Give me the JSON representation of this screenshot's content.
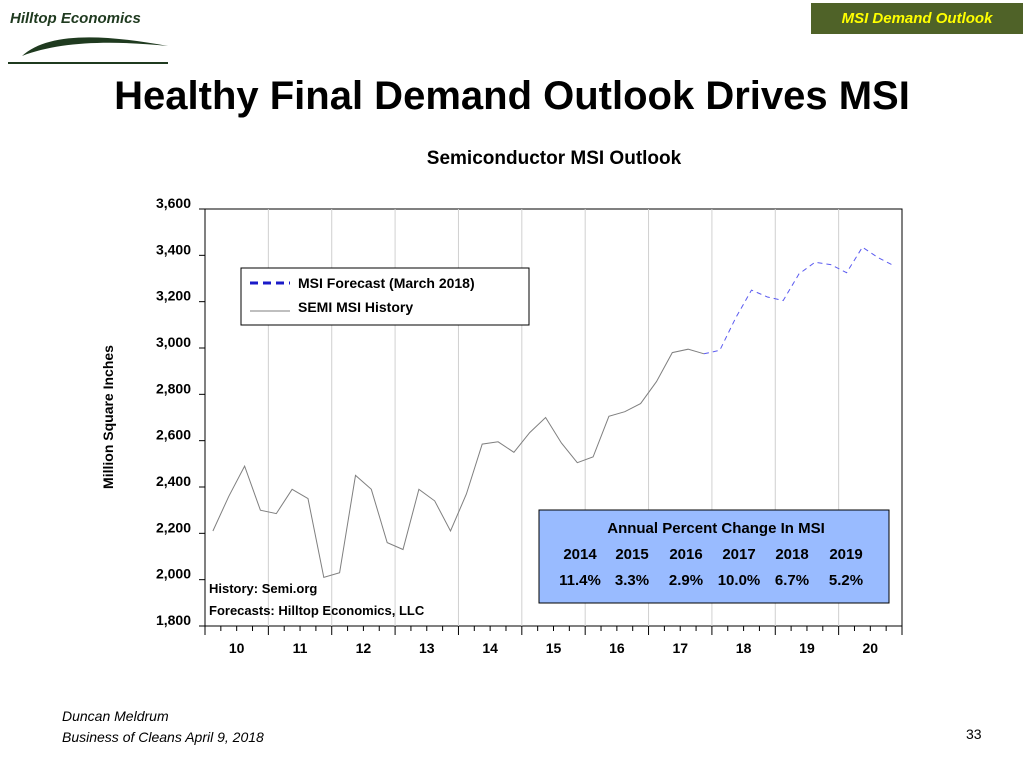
{
  "logo": {
    "text": "Hilltop Economics"
  },
  "header": {
    "tag": "MSI Demand Outlook"
  },
  "slide": {
    "title": "Healthy Final Demand Outlook Drives MSI"
  },
  "footer": {
    "line1": "Duncan Meldrum",
    "line2": "Business of Cleans April 9, 2018"
  },
  "page_number": "33",
  "colors": {
    "history": "#7f7f7f",
    "forecast": "#5b5bf0",
    "forecast_legend": "#1a1ac8",
    "table_bg": "#99bbff",
    "tag_bg": "#4f6228",
    "tag_text": "#ffff00"
  },
  "chart_data": {
    "type": "line",
    "title": "Semiconductor MSI Outlook",
    "ylabel": "Million Square Inches",
    "xlabel": "",
    "ylim": [
      1800,
      3600
    ],
    "xlim": [
      9.5,
      20.5
    ],
    "yticks": [
      1800,
      2000,
      2200,
      2400,
      2600,
      2800,
      3000,
      3200,
      3400,
      3600
    ],
    "ytick_labels": [
      "1,800",
      "2,000",
      "2,200",
      "2,400",
      "2,600",
      "2,800",
      "3,000",
      "3,200",
      "3,400",
      "3,600"
    ],
    "x_categories": [
      "10",
      "11",
      "12",
      "13",
      "14",
      "15",
      "16",
      "17",
      "18",
      "19",
      "20"
    ],
    "grid": "vertical",
    "legend_position": "top-left",
    "series": [
      {
        "name": "SEMI MSI History",
        "style": "solid",
        "x": [
          9.625,
          9.875,
          10.125,
          10.375,
          10.625,
          10.875,
          11.125,
          11.375,
          11.625,
          11.875,
          12.125,
          12.375,
          12.625,
          12.875,
          13.125,
          13.375,
          13.625,
          13.875,
          14.125,
          14.375,
          14.625,
          14.875,
          15.125,
          15.375,
          15.625,
          15.875,
          16.125,
          16.375,
          16.625,
          16.875,
          17.125,
          17.375
        ],
        "values": [
          2210,
          2360,
          2490,
          2300,
          2285,
          2390,
          2350,
          2010,
          2030,
          2450,
          2390,
          2160,
          2130,
          2390,
          2340,
          2210,
          2370,
          2585,
          2595,
          2550,
          2635,
          2700,
          2590,
          2505,
          2530,
          2705,
          2725,
          2760,
          2855,
          2980,
          2995,
          2975
        ]
      },
      {
        "name": "MSI Forecast (March 2018)",
        "style": "dashed",
        "x": [
          17.375,
          17.625,
          17.875,
          18.125,
          18.375,
          18.625,
          18.875,
          19.125,
          19.375,
          19.625,
          19.875,
          20.125,
          20.375
        ],
        "values": [
          2975,
          2990,
          3130,
          3250,
          3220,
          3205,
          3320,
          3370,
          3360,
          3325,
          3435,
          3390,
          3355
        ]
      }
    ],
    "annotations": [
      {
        "text": "History: Semi.org"
      },
      {
        "text": "Forecasts: Hilltop Economics, LLC"
      }
    ],
    "table": {
      "title": "Annual Percent Change In MSI",
      "years": [
        "2014",
        "2015",
        "2016",
        "2017",
        "2018",
        "2019"
      ],
      "values": [
        "11.4%",
        "3.3%",
        "2.9%",
        "10.0%",
        "6.7%",
        "5.2%"
      ]
    }
  }
}
